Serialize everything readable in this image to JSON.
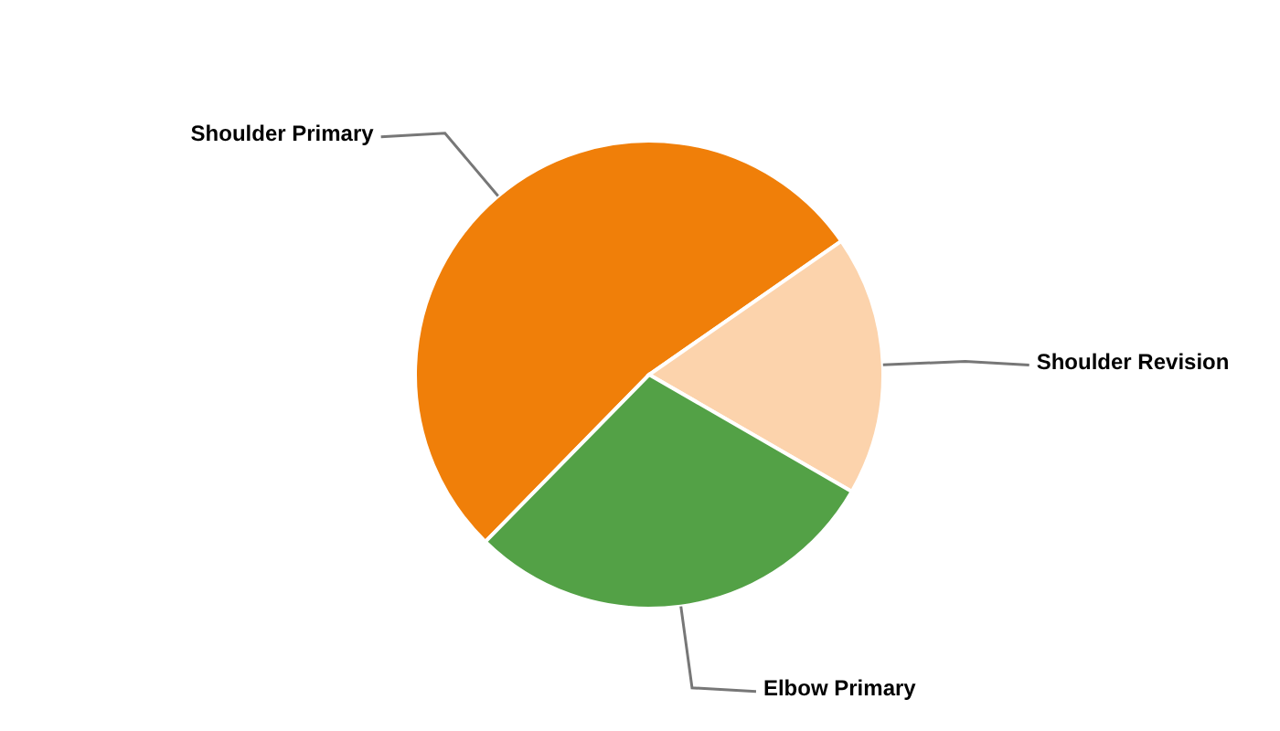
{
  "chart_data": {
    "type": "pie",
    "categories": [
      "Shoulder Primary",
      "Shoulder Revision",
      "Elbow Primary"
    ],
    "values": [
      53,
      18,
      29
    ],
    "colors": [
      "#f07f09",
      "#fcd3ac",
      "#53a146"
    ]
  }
}
